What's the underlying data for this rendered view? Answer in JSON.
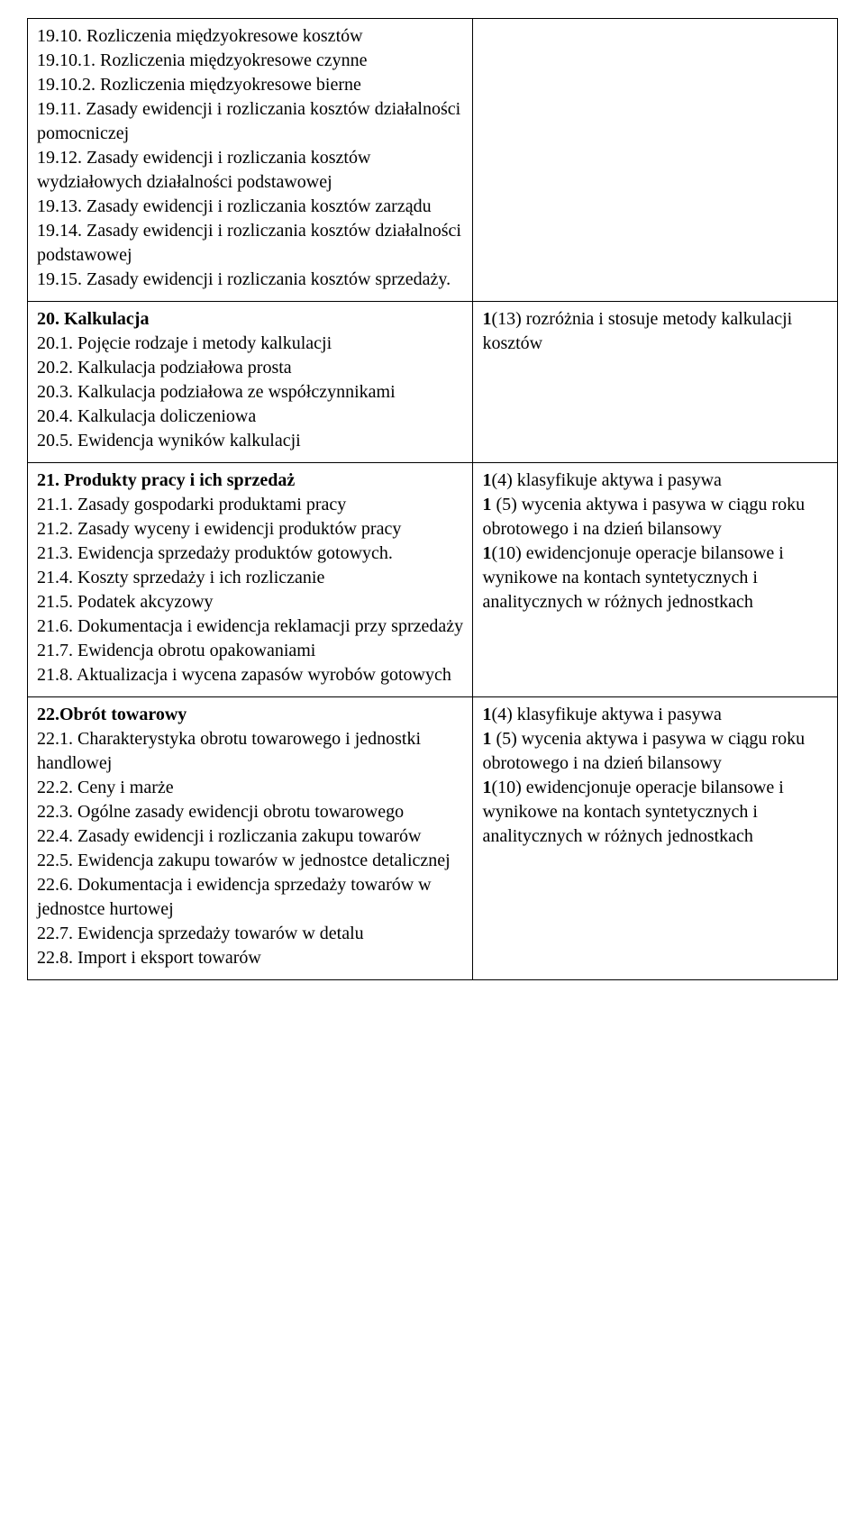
{
  "rows": [
    {
      "left": [
        {
          "t": "19.10. Rozliczenia międzyokresowe kosztów",
          "b": false
        },
        {
          "t": "19.10.1. Rozliczenia międzyokresowe czynne",
          "b": false
        },
        {
          "t": "19.10.2. Rozliczenia międzyokresowe bierne",
          "b": false
        },
        {
          "t": "19.11. Zasady ewidencji i rozliczania kosztów działalności pomocniczej",
          "b": false
        },
        {
          "t": "19.12. Zasady ewidencji i rozliczania kosztów wydziałowych działalności podstawowej",
          "b": false
        },
        {
          "t": "19.13. Zasady ewidencji i rozliczania kosztów zarządu",
          "b": false
        },
        {
          "t": "19.14. Zasady ewidencji i rozliczania kosztów działalności podstawowej",
          "b": false
        },
        {
          "t": "19.15. Zasady ewidencji i rozliczania kosztów sprzedaży.",
          "b": false
        }
      ],
      "right": []
    },
    {
      "left": [
        {
          "t": "20. Kalkulacja",
          "b": true
        },
        {
          "t": "20.1. Pojęcie rodzaje i metody kalkulacji",
          "b": false
        },
        {
          "t": "20.2. Kalkulacja podziałowa prosta",
          "b": false
        },
        {
          "t": "20.3. Kalkulacja podziałowa ze współczynnikami",
          "b": false
        },
        {
          "t": "20.4. Kalkulacja doliczeniowa",
          "b": false
        },
        {
          "t": "20.5. Ewidencja wyników kalkulacji",
          "b": false
        }
      ],
      "right": [
        {
          "runs": [
            {
              "t": "1",
              "b": true
            },
            {
              "t": "(13) rozróżnia i stosuje metody kalkulacji kosztów",
              "b": false
            }
          ]
        }
      ]
    },
    {
      "left": [
        {
          "t": "21. Produkty pracy i ich sprzedaż",
          "b": true
        },
        {
          "t": "21.1. Zasady gospodarki produktami pracy",
          "b": false
        },
        {
          "t": "21.2. Zasady wyceny i ewidencji produktów pracy",
          "b": false
        },
        {
          "t": "21.3. Ewidencja sprzedaży produktów gotowych.",
          "b": false
        },
        {
          "t": "21.4. Koszty sprzedaży i ich rozliczanie",
          "b": false
        },
        {
          "t": "21.5. Podatek akcyzowy",
          "b": false
        },
        {
          "t": "21.6. Dokumentacja i ewidencja reklamacji przy sprzedaży",
          "b": false
        },
        {
          "t": "21.7. Ewidencja obrotu opakowaniami",
          "b": false
        },
        {
          "t": "21.8. Aktualizacja i wycena zapasów wyrobów gotowych",
          "b": false
        }
      ],
      "right": [
        {
          "runs": [
            {
              "t": "1",
              "b": true
            },
            {
              "t": "(4) klasyfikuje aktywa i pasywa",
              "b": false
            }
          ]
        },
        {
          "runs": [
            {
              "t": "1 ",
              "b": true
            },
            {
              "t": "(5) wycenia aktywa i pasywa w ciągu roku obrotowego i na dzień bilansowy",
              "b": false
            }
          ]
        },
        {
          "runs": [
            {
              "t": "1",
              "b": true
            },
            {
              "t": "(10) ewidencjonuje operacje bilansowe i wynikowe na kontach syntetycznych i analitycznych w różnych jednostkach",
              "b": false
            }
          ]
        }
      ]
    },
    {
      "left": [
        {
          "t": "22.Obrót towarowy",
          "b": true
        },
        {
          "t": "22.1. Charakterystyka obrotu towarowego i jednostki handlowej",
          "b": false
        },
        {
          "t": "22.2. Ceny i marże",
          "b": false
        },
        {
          "t": "22.3. Ogólne zasady ewidencji obrotu towarowego",
          "b": false
        },
        {
          "t": "22.4. Zasady ewidencji i rozliczania zakupu towarów",
          "b": false
        },
        {
          "t": "22.5. Ewidencja zakupu towarów w jednostce detalicznej",
          "b": false
        },
        {
          "t": "22.6. Dokumentacja i ewidencja sprzedaży towarów w jednostce hurtowej",
          "b": false
        },
        {
          "t": "22.7. Ewidencja sprzedaży towarów w detalu",
          "b": false
        },
        {
          "t": "22.8. Import i eksport towarów",
          "b": false
        }
      ],
      "right": [
        {
          "runs": [
            {
              "t": "1",
              "b": true
            },
            {
              "t": "(4) klasyfikuje aktywa i pasywa",
              "b": false
            }
          ]
        },
        {
          "runs": [
            {
              "t": "1 ",
              "b": true
            },
            {
              "t": "(5) wycenia aktywa i pasywa w ciągu roku obrotowego i na dzień bilansowy",
              "b": false
            }
          ]
        },
        {
          "runs": [
            {
              "t": "1",
              "b": true
            },
            {
              "t": "(10) ewidencjonuje operacje bilansowe i wynikowe na kontach syntetycznych i analitycznych w różnych jednostkach",
              "b": false
            }
          ]
        }
      ]
    }
  ]
}
